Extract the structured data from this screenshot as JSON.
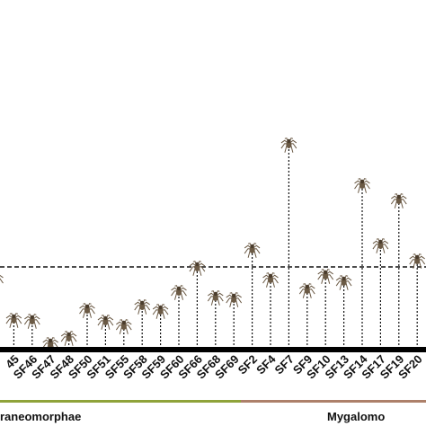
{
  "chart_data": {
    "type": "lollipop",
    "categories": [
      null,
      "45",
      "SF46",
      "SF47",
      "SF48",
      "SF50",
      "SF51",
      "SF55",
      "SF58",
      "SF59",
      "SF60",
      "SF66",
      "SF68",
      "SF69",
      "SF2",
      "SF4",
      "SF7",
      "SF9",
      "SF10",
      "SF13",
      "SF14",
      "SF17",
      "SF19",
      "SF20"
    ],
    "values": [
      78,
      33,
      32,
      6,
      13,
      44,
      31,
      26,
      48,
      43,
      64,
      91,
      58,
      56,
      111,
      78,
      228,
      66,
      82,
      75,
      183,
      116,
      166,
      99
    ],
    "ylim": [
      0,
      388
    ],
    "threshold": 91,
    "color": "#6b5a45",
    "groups": [
      {
        "label": "raneomorphae",
        "color": "#8fa33a"
      },
      {
        "label": "Mygalomo",
        "color": "#ad806a"
      }
    ]
  }
}
